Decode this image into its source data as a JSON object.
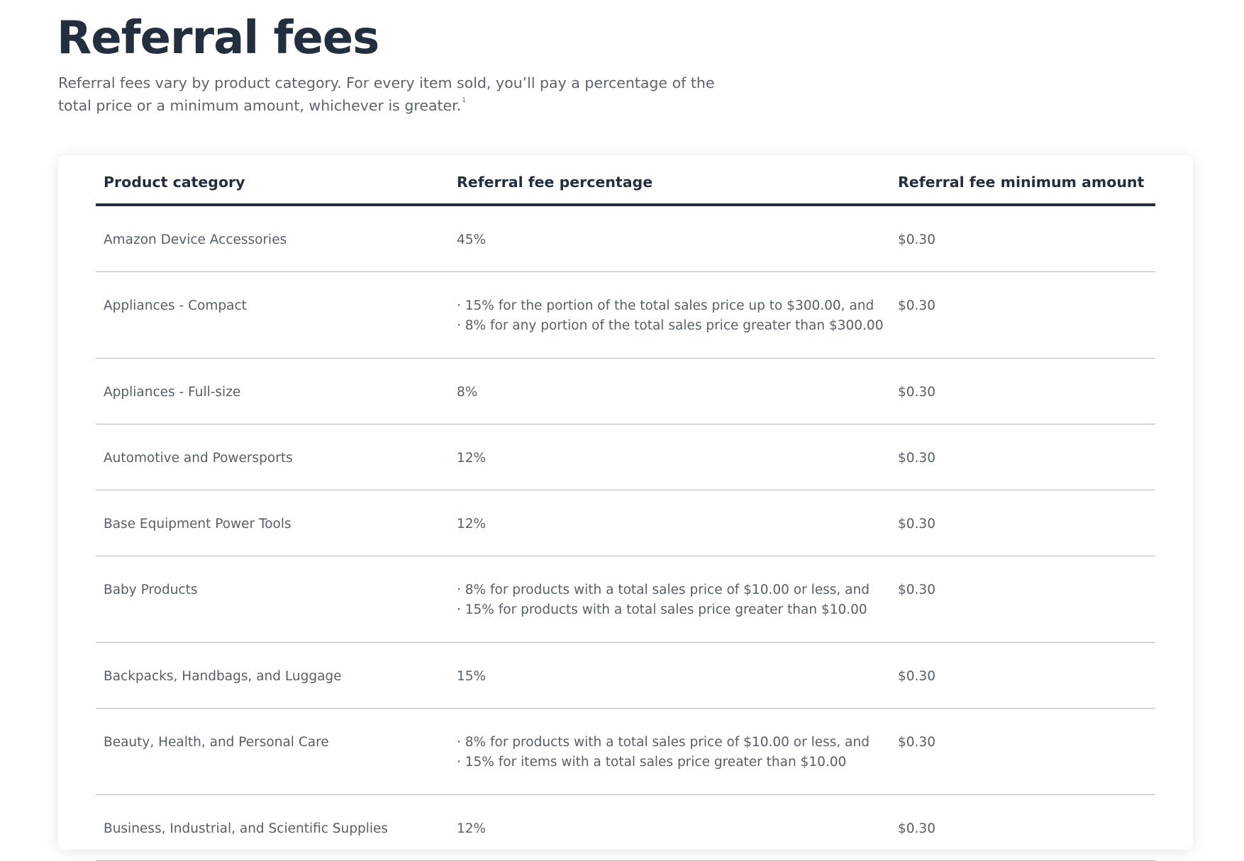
{
  "header": {
    "title": "Referral fees",
    "intro": "Referral fees vary by product category. For every item sold, you’ll pay a percentage of the total price or a minimum amount, whichever is greater.",
    "footnote_marker": "1"
  },
  "table": {
    "columns": [
      "Product category",
      "Referral fee percentage",
      "Referral fee minimum amount"
    ],
    "rows": [
      {
        "category": "Amazon Device Accessories",
        "percentage": [
          "45%"
        ],
        "minimum": "$0.30"
      },
      {
        "category": "Appliances - Compact",
        "percentage": [
          "· 15% for the portion of the total sales price up to $300.00, and",
          "· 8% for any portion of the total sales price greater than $300.00"
        ],
        "minimum": "$0.30"
      },
      {
        "category": "Appliances - Full-size",
        "percentage": [
          "8%"
        ],
        "minimum": "$0.30"
      },
      {
        "category": "Automotive and Powersports",
        "percentage": [
          "12%"
        ],
        "minimum": "$0.30"
      },
      {
        "category": "Base Equipment Power Tools",
        "percentage": [
          "12%"
        ],
        "minimum": "$0.30"
      },
      {
        "category": "Baby Products",
        "percentage": [
          "· 8% for products with a total sales price of $10.00 or less, and",
          "· 15% for products with a total sales price greater than $10.00"
        ],
        "minimum": "$0.30"
      },
      {
        "category": "Backpacks, Handbags, and Luggage",
        "percentage": [
          "15%"
        ],
        "minimum": "$0.30"
      },
      {
        "category": "Beauty, Health, and Personal Care",
        "percentage": [
          "· 8% for products with a total sales price of $10.00 or less, and",
          "· 15% for items with a total sales price greater than $10.00"
        ],
        "minimum": "$0.30"
      },
      {
        "category": "Business, Industrial, and Scientific Supplies",
        "percentage": [
          "12%"
        ],
        "minimum": "$0.30"
      }
    ]
  }
}
